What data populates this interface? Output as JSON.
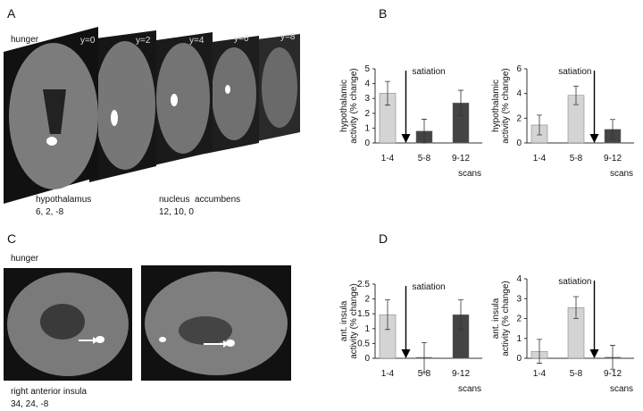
{
  "panels": {
    "a": {
      "letter": "A",
      "condition": "hunger",
      "slices": [
        "y=0",
        "y=2",
        "y=4",
        "y=6",
        "y=8"
      ],
      "regions": [
        {
          "name": "hypothalamus",
          "coords": "6, 2, -8"
        },
        {
          "name": "nucleus  accumbens",
          "coords": "12, 10, 0"
        }
      ]
    },
    "b": {
      "letter": "B"
    },
    "c": {
      "letter": "C",
      "condition": "hunger",
      "region": {
        "name": "right anterior insula",
        "coords": "34, 24, -8"
      }
    },
    "d": {
      "letter": "D"
    }
  },
  "chart_data": [
    {
      "type": "bar",
      "ylabel": [
        "hypothalamic",
        "activity (% change)"
      ],
      "xlabel": "scans",
      "annotation": "satiation",
      "categories": [
        "1-4",
        "5-8",
        "9-12"
      ],
      "values": [
        3.35,
        0.8,
        2.7
      ],
      "errors": [
        0.8,
        0.8,
        0.85
      ],
      "colors": [
        "#d4d4d4",
        "#444444",
        "#444444"
      ],
      "ylim": [
        0,
        5
      ],
      "yticks": [
        0,
        1,
        2,
        3,
        4,
        5
      ]
    },
    {
      "type": "bar",
      "ylabel": [
        "hypothalamic",
        "activity (% change)"
      ],
      "xlabel": "scans",
      "annotation": "satiation",
      "categories": [
        "1-4",
        "5-8",
        "9-12"
      ],
      "values": [
        1.45,
        3.85,
        1.1
      ],
      "errors": [
        0.8,
        0.75,
        0.8
      ],
      "colors": [
        "#d4d4d4",
        "#d4d4d4",
        "#444444"
      ],
      "ylim": [
        0,
        6
      ],
      "yticks": [
        0,
        2,
        4,
        6
      ]
    },
    {
      "type": "bar",
      "ylabel": [
        "ant. insula",
        "activity (% change)"
      ],
      "xlabel": "scans",
      "annotation": "satiation",
      "categories": [
        "1-4",
        "5-8",
        "9-12"
      ],
      "values": [
        1.47,
        0.03,
        1.47
      ],
      "errors": [
        0.5,
        0.5,
        0.5
      ],
      "colors": [
        "#d4d4d4",
        "#444444",
        "#444444"
      ],
      "ylim": [
        0,
        2.5
      ],
      "yticks": [
        0,
        0.5,
        1,
        1.5,
        2,
        2.5
      ]
    },
    {
      "type": "bar",
      "ylabel": [
        "ant. insula",
        "activity (% change)"
      ],
      "xlabel": "scans",
      "annotation": "satiation",
      "categories": [
        "1-4",
        "5-8",
        "9-12"
      ],
      "values": [
        0.35,
        2.55,
        0.05
      ],
      "errors": [
        0.6,
        0.55,
        0.6
      ],
      "colors": [
        "#d4d4d4",
        "#d4d4d4",
        "#444444"
      ],
      "ylim": [
        0,
        4
      ],
      "yticks": [
        0,
        1,
        2,
        3,
        4
      ]
    }
  ]
}
